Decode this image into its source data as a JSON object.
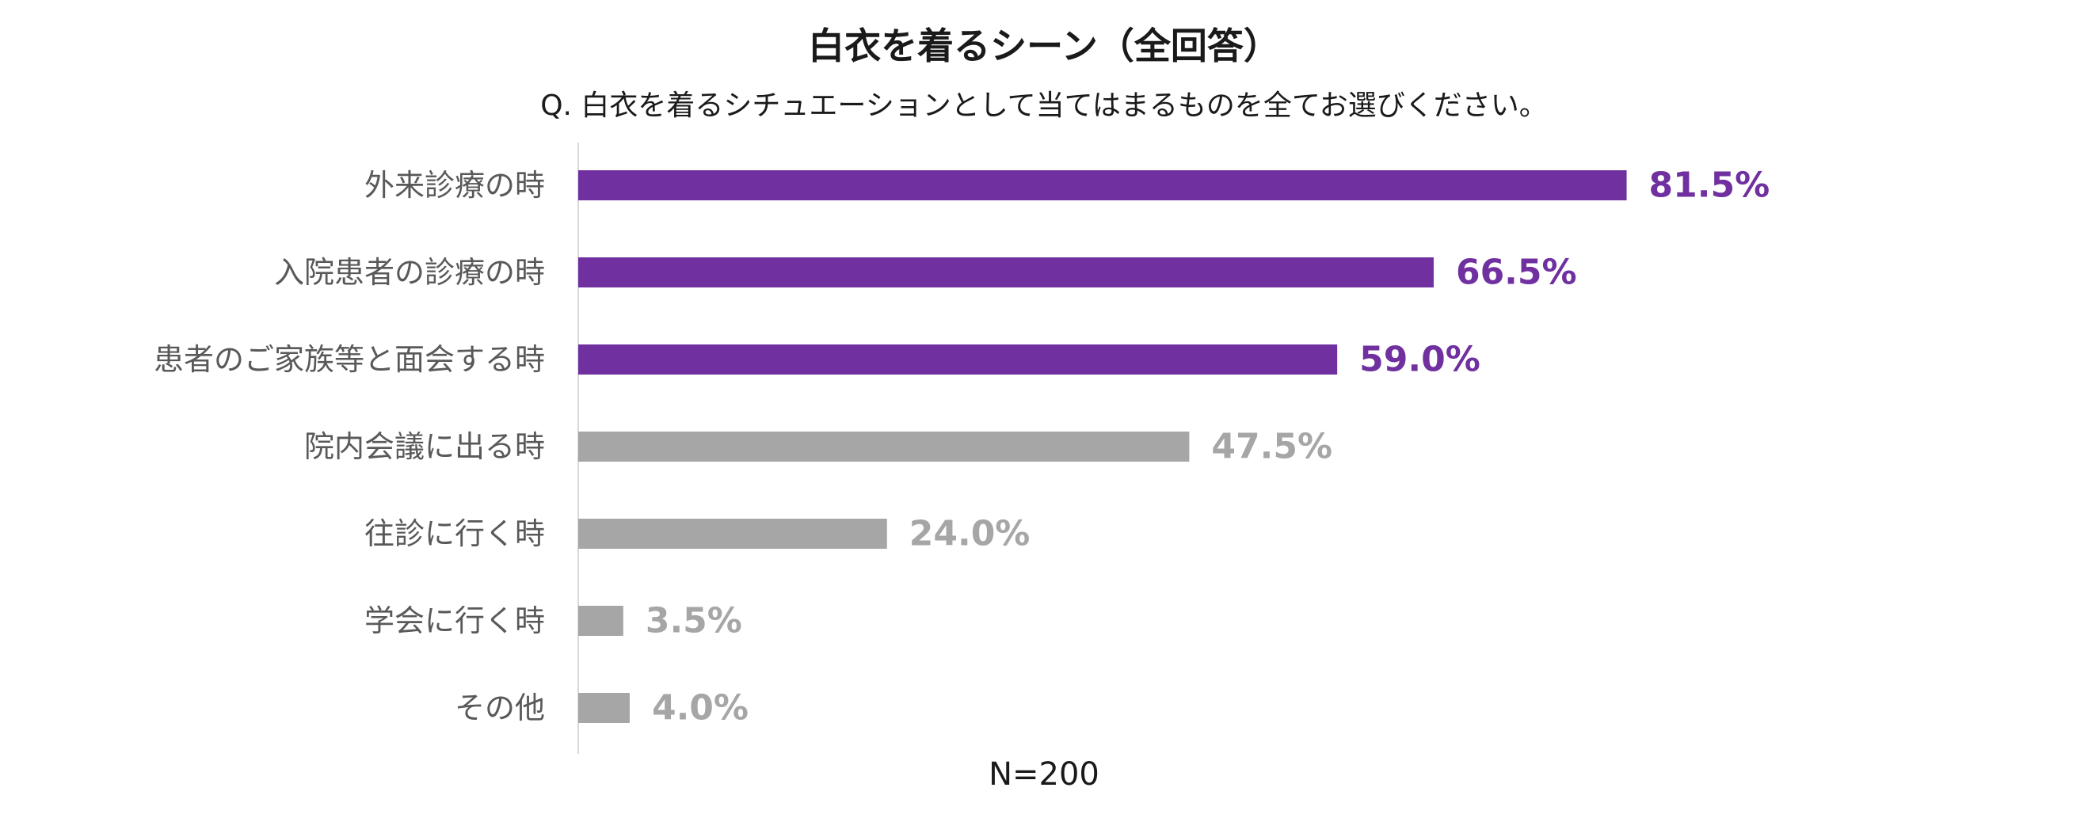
{
  "chart_data": {
    "type": "bar",
    "orientation": "horizontal",
    "title": "白衣を着るシーン（全回答）",
    "subtitle": "Q. 白衣を着るシチュエーションとして当てはまるものを全てお選びください。",
    "categories": [
      "外来診療の時",
      "入院患者の診療の時",
      "患者のご家族等と面会する時",
      "院内会議に出る時",
      "往診に行く時",
      "学会に行く時",
      "その他"
    ],
    "values": [
      81.5,
      66.5,
      59.0,
      47.5,
      24.0,
      3.5,
      4.0
    ],
    "value_labels": [
      "81.5%",
      "66.5%",
      "59.0%",
      "47.5%",
      "24.0%",
      "3.5%",
      "4.0%"
    ],
    "highlighted": [
      true,
      true,
      true,
      false,
      false,
      false,
      false
    ],
    "xlim": [
      0,
      100
    ],
    "unit": "%",
    "grid": false,
    "footnote": "N=200",
    "colors": {
      "highlight": "#7030A0",
      "default": "#A6A6A6",
      "axis": "#D9D9D9",
      "category_text": "#595959",
      "title_text": "#1A1A1A"
    }
  }
}
